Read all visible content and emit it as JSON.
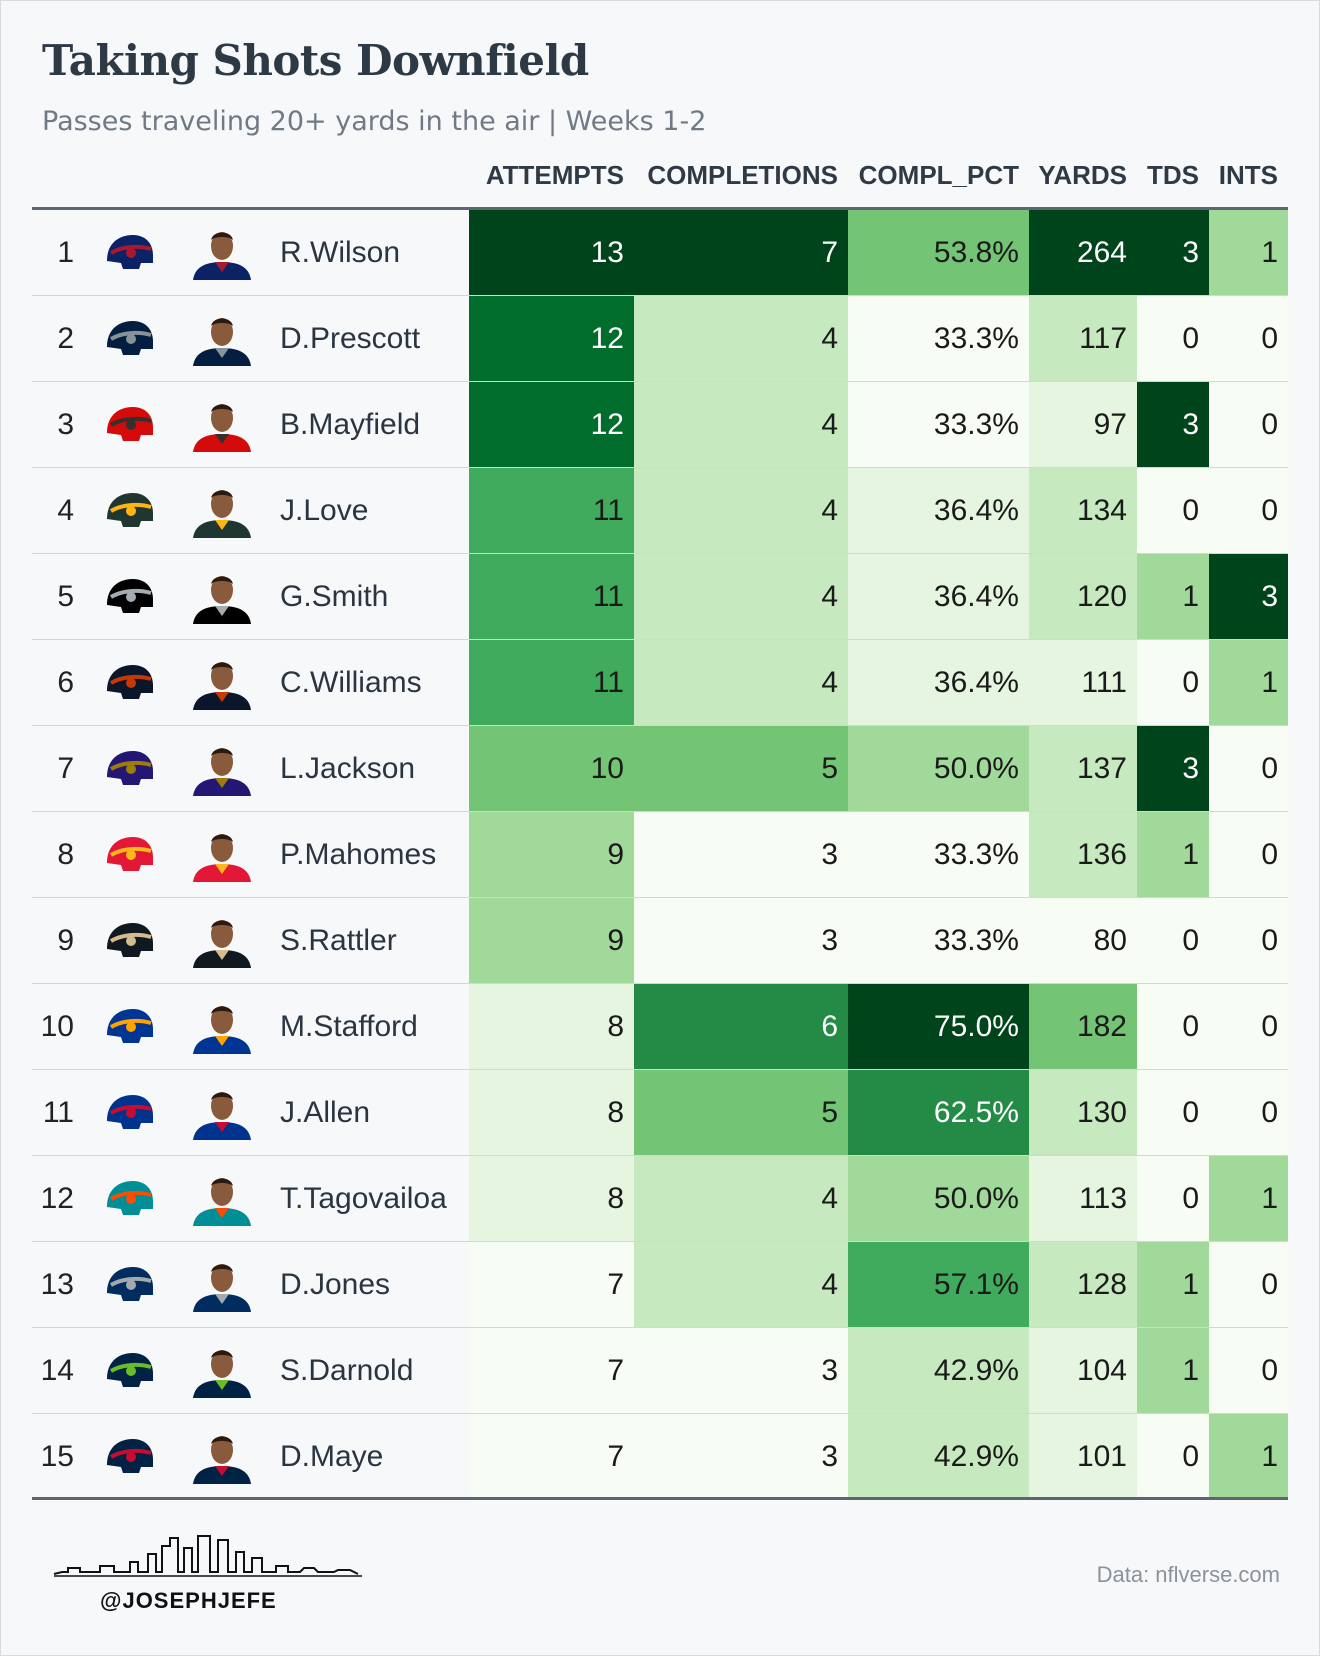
{
  "title": "Taking Shots Downfield",
  "subtitle": "Passes traveling 20+ yards in the air | Weeks 1-2",
  "headers": {
    "attempts": "ATTEMPTS",
    "completions": "COMPLETIONS",
    "compl_pct": "COMPL_PCT",
    "yards": "YARDS",
    "tds": "TDS",
    "ints": "INTS"
  },
  "footer": {
    "credit": "@JOSEPHJEFE",
    "source": "Data: nflverse.com"
  },
  "chart_data": {
    "type": "table",
    "title": "Taking Shots Downfield",
    "subtitle": "Passes traveling 20+ yards in the air | Weeks 1-2",
    "columns": [
      "ATTEMPTS",
      "COMPLETIONS",
      "COMPL_PCT",
      "YARDS",
      "TDS",
      "INTS"
    ],
    "rows": [
      {
        "rank": "1",
        "team": "NYG",
        "player": "R.Wilson",
        "attempts": 13,
        "completions": 7,
        "compl_pct": "53.8%",
        "yards": 264,
        "tds": 3,
        "ints": 1
      },
      {
        "rank": "2",
        "team": "DAL",
        "player": "D.Prescott",
        "attempts": 12,
        "completions": 4,
        "compl_pct": "33.3%",
        "yards": 117,
        "tds": 0,
        "ints": 0
      },
      {
        "rank": "3",
        "team": "TB",
        "player": "B.Mayfield",
        "attempts": 12,
        "completions": 4,
        "compl_pct": "33.3%",
        "yards": 97,
        "tds": 3,
        "ints": 0
      },
      {
        "rank": "4",
        "team": "GB",
        "player": "J.Love",
        "attempts": 11,
        "completions": 4,
        "compl_pct": "36.4%",
        "yards": 134,
        "tds": 0,
        "ints": 0
      },
      {
        "rank": "5",
        "team": "LV",
        "player": "G.Smith",
        "attempts": 11,
        "completions": 4,
        "compl_pct": "36.4%",
        "yards": 120,
        "tds": 1,
        "ints": 3
      },
      {
        "rank": "6",
        "team": "CHI",
        "player": "C.Williams",
        "attempts": 11,
        "completions": 4,
        "compl_pct": "36.4%",
        "yards": 111,
        "tds": 0,
        "ints": 1
      },
      {
        "rank": "7",
        "team": "BAL",
        "player": "L.Jackson",
        "attempts": 10,
        "completions": 5,
        "compl_pct": "50.0%",
        "yards": 137,
        "tds": 3,
        "ints": 0
      },
      {
        "rank": "8",
        "team": "KC",
        "player": "P.Mahomes",
        "attempts": 9,
        "completions": 3,
        "compl_pct": "33.3%",
        "yards": 136,
        "tds": 1,
        "ints": 0
      },
      {
        "rank": "9",
        "team": "NO",
        "player": "S.Rattler",
        "attempts": 9,
        "completions": 3,
        "compl_pct": "33.3%",
        "yards": 80,
        "tds": 0,
        "ints": 0
      },
      {
        "rank": "10",
        "team": "LA",
        "player": "M.Stafford",
        "attempts": 8,
        "completions": 6,
        "compl_pct": "75.0%",
        "yards": 182,
        "tds": 0,
        "ints": 0
      },
      {
        "rank": "11",
        "team": "BUF",
        "player": "J.Allen",
        "attempts": 8,
        "completions": 5,
        "compl_pct": "62.5%",
        "yards": 130,
        "tds": 0,
        "ints": 0
      },
      {
        "rank": "12",
        "team": "MIA",
        "player": "T.Tagovailoa",
        "attempts": 8,
        "completions": 4,
        "compl_pct": "50.0%",
        "yards": 113,
        "tds": 0,
        "ints": 1
      },
      {
        "rank": "13",
        "team": "IND",
        "player": "D.Jones",
        "attempts": 7,
        "completions": 4,
        "compl_pct": "57.1%",
        "yards": 128,
        "tds": 1,
        "ints": 0
      },
      {
        "rank": "14",
        "team": "SEA",
        "player": "S.Darnold",
        "attempts": 7,
        "completions": 3,
        "compl_pct": "42.9%",
        "yards": 104,
        "tds": 1,
        "ints": 0
      },
      {
        "rank": "15",
        "team": "NE",
        "player": "D.Maye",
        "attempts": 7,
        "completions": 3,
        "compl_pct": "42.9%",
        "yards": 101,
        "tds": 0,
        "ints": 1
      }
    ],
    "color_scale": [
      "#f7fcf5",
      "#e5f5e0",
      "#c7e9c0",
      "#a1d99b",
      "#74c476",
      "#41ab5d",
      "#238b45",
      "#006d2c",
      "#00441b"
    ],
    "team_colors": {
      "NYG": {
        "primary": "#0b2265",
        "secondary": "#a71930"
      },
      "DAL": {
        "primary": "#041e42",
        "secondary": "#869397"
      },
      "TB": {
        "primary": "#d50a0a",
        "secondary": "#34302b"
      },
      "GB": {
        "primary": "#203731",
        "secondary": "#ffb612"
      },
      "LV": {
        "primary": "#000000",
        "secondary": "#a5acaf"
      },
      "CHI": {
        "primary": "#0b162a",
        "secondary": "#c83803"
      },
      "BAL": {
        "primary": "#241773",
        "secondary": "#9e7c0c"
      },
      "KC": {
        "primary": "#e31837",
        "secondary": "#ffb81c"
      },
      "NO": {
        "primary": "#101820",
        "secondary": "#d3bc8d"
      },
      "LA": {
        "primary": "#003594",
        "secondary": "#ffa300"
      },
      "BUF": {
        "primary": "#00338d",
        "secondary": "#c60c30"
      },
      "MIA": {
        "primary": "#008e97",
        "secondary": "#fc4c02"
      },
      "IND": {
        "primary": "#002c5f",
        "secondary": "#a2aaad"
      },
      "SEA": {
        "primary": "#002244",
        "secondary": "#69be28"
      },
      "NE": {
        "primary": "#002244",
        "secondary": "#c60c30"
      }
    }
  }
}
